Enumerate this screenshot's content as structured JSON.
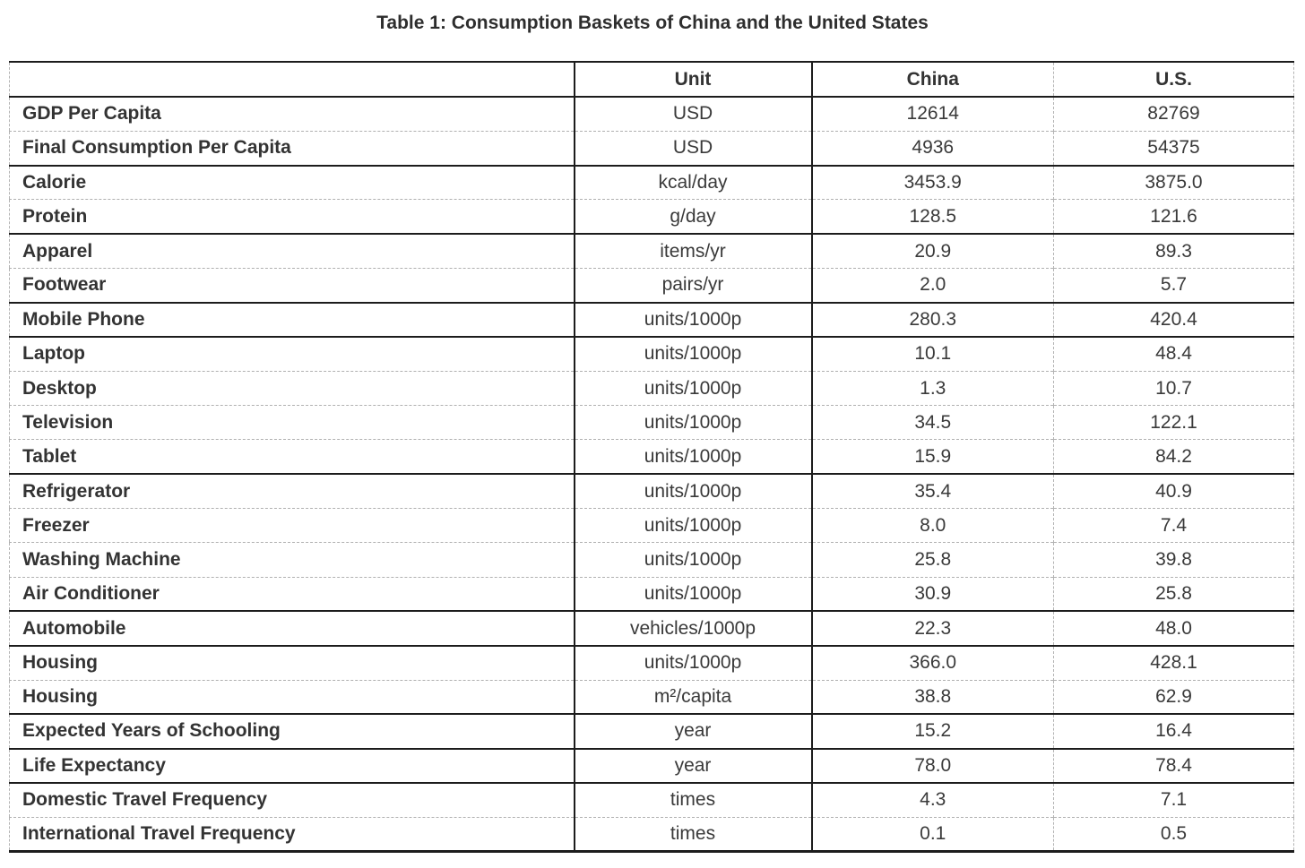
{
  "page": {
    "title": "Table 1: Consumption Baskets of China and the United States"
  },
  "colors": {
    "background": "#ffffff",
    "text": "#333333",
    "solid_border": "#1c1c1c",
    "dashed_border": "#b3b3b3"
  },
  "table": {
    "columns": {
      "label": "",
      "unit": "Unit",
      "china": "China",
      "us": "U.S."
    },
    "rows": [
      {
        "label": "GDP Per Capita",
        "unit": "USD",
        "china": "12614",
        "us": "82769"
      },
      {
        "label": "Final Consumption Per Capita",
        "unit": "USD",
        "china": "4936",
        "us": "54375"
      },
      {
        "label": "Calorie",
        "unit": "kcal/day",
        "china": "3453.9",
        "us": "3875.0"
      },
      {
        "label": "Protein",
        "unit": "g/day",
        "china": "128.5",
        "us": "121.6"
      },
      {
        "label": "Apparel",
        "unit": "items/yr",
        "china": "20.9",
        "us": "89.3"
      },
      {
        "label": "Footwear",
        "unit": "pairs/yr",
        "china": "2.0",
        "us": "5.7"
      },
      {
        "label": "Mobile Phone",
        "unit": "units/1000p",
        "china": "280.3",
        "us": "420.4"
      },
      {
        "label": "Laptop",
        "unit": "units/1000p",
        "china": "10.1",
        "us": "48.4"
      },
      {
        "label": "Desktop",
        "unit": "units/1000p",
        "china": "1.3",
        "us": "10.7"
      },
      {
        "label": "Television",
        "unit": "units/1000p",
        "china": "34.5",
        "us": "122.1"
      },
      {
        "label": "Tablet",
        "unit": "units/1000p",
        "china": "15.9",
        "us": "84.2"
      },
      {
        "label": "Refrigerator",
        "unit": "units/1000p",
        "china": "35.4",
        "us": "40.9"
      },
      {
        "label": "Freezer",
        "unit": "units/1000p",
        "china": "8.0",
        "us": "7.4"
      },
      {
        "label": "Washing Machine",
        "unit": "units/1000p",
        "china": "25.8",
        "us": "39.8"
      },
      {
        "label": "Air Conditioner",
        "unit": "units/1000p",
        "china": "30.9",
        "us": "25.8"
      },
      {
        "label": "Automobile",
        "unit": "vehicles/1000p",
        "china": "22.3",
        "us": "48.0"
      },
      {
        "label": "Housing",
        "unit": "units/1000p",
        "china": "366.0",
        "us": "428.1"
      },
      {
        "label": "Housing",
        "unit": "m²/capita",
        "china": "38.8",
        "us": "62.9"
      },
      {
        "label": "Expected Years of Schooling",
        "unit": "year",
        "china": "15.2",
        "us": "16.4"
      },
      {
        "label": "Life Expectancy",
        "unit": "year",
        "china": "78.0",
        "us": "78.4"
      },
      {
        "label": "Domestic Travel Frequency",
        "unit": "times",
        "china": "4.3",
        "us": "7.1"
      },
      {
        "label": "International Travel Frequency",
        "unit": "times",
        "china": "0.1",
        "us": "0.5"
      }
    ]
  }
}
